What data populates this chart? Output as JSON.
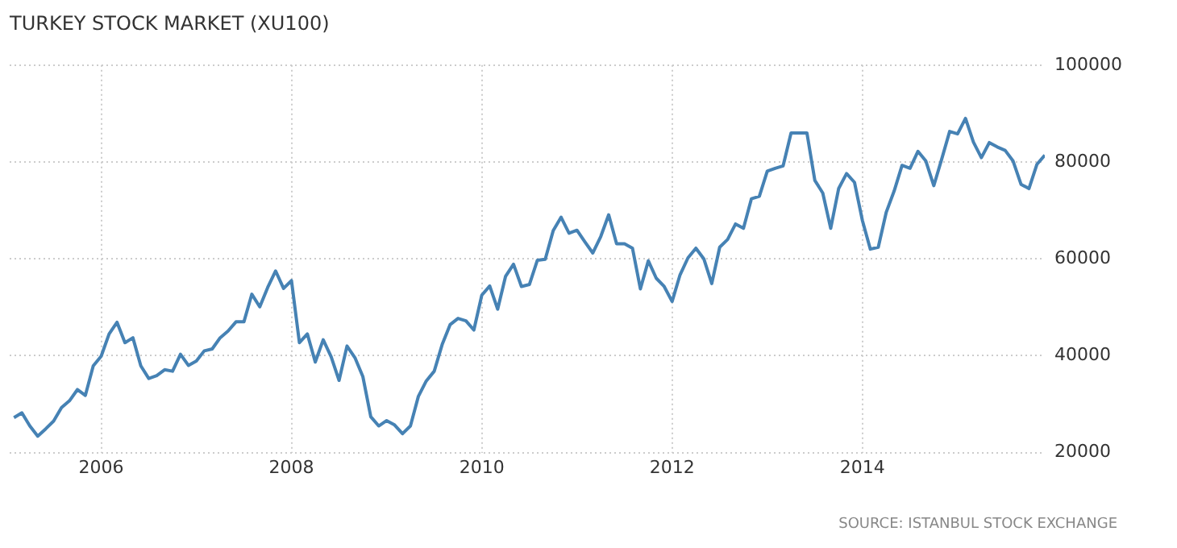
{
  "chart_data": {
    "type": "line",
    "title": "TURKEY STOCK MARKET (XU100)",
    "annotations": [
      "SOURCE: ISTANBUL STOCK EXCHANGE"
    ],
    "x": [
      "2005-02",
      "2005-03",
      "2005-04",
      "2005-05",
      "2005-06",
      "2005-07",
      "2005-08",
      "2005-09",
      "2005-10",
      "2005-11",
      "2005-12",
      "2006-01",
      "2006-02",
      "2006-03",
      "2006-04",
      "2006-05",
      "2006-06",
      "2006-07",
      "2006-08",
      "2006-09",
      "2006-10",
      "2006-11",
      "2006-12",
      "2007-01",
      "2007-02",
      "2007-03",
      "2007-04",
      "2007-05",
      "2007-06",
      "2007-07",
      "2007-08",
      "2007-09",
      "2007-10",
      "2007-11",
      "2007-12",
      "2008-01",
      "2008-02",
      "2008-03",
      "2008-04",
      "2008-05",
      "2008-06",
      "2008-07",
      "2008-08",
      "2008-09",
      "2008-10",
      "2008-11",
      "2008-12",
      "2009-01",
      "2009-02",
      "2009-03",
      "2009-04",
      "2009-05",
      "2009-06",
      "2009-07",
      "2009-08",
      "2009-09",
      "2009-10",
      "2009-11",
      "2009-12",
      "2010-01",
      "2010-02",
      "2010-03",
      "2010-04",
      "2010-05",
      "2010-06",
      "2010-07",
      "2010-08",
      "2010-09",
      "2010-10",
      "2010-11",
      "2010-12",
      "2011-01",
      "2011-02",
      "2011-03",
      "2011-04",
      "2011-05",
      "2011-06",
      "2011-07",
      "2011-08",
      "2011-09",
      "2011-10",
      "2011-11",
      "2011-12",
      "2012-01",
      "2012-02",
      "2012-03",
      "2012-04",
      "2012-05",
      "2012-06",
      "2012-07",
      "2012-08",
      "2012-09",
      "2012-10",
      "2012-11",
      "2012-12",
      "2013-01",
      "2013-02",
      "2013-03",
      "2013-04",
      "2013-05",
      "2013-06",
      "2013-07",
      "2013-08",
      "2013-09",
      "2013-10",
      "2013-11",
      "2013-12",
      "2014-01",
      "2014-02",
      "2014-03",
      "2014-04",
      "2014-05",
      "2014-06",
      "2014-07",
      "2014-08",
      "2014-09",
      "2014-10",
      "2014-11",
      "2014-12",
      "2015-01",
      "2015-02",
      "2015-03",
      "2015-04",
      "2015-05",
      "2015-06",
      "2015-07",
      "2015-08",
      "2015-09",
      "2015-10",
      "2015-11",
      "2015-12"
    ],
    "series": [
      {
        "color": "#4682b4",
        "values": [
          27200,
          28200,
          25500,
          23400,
          24900,
          26500,
          29300,
          30700,
          33000,
          31800,
          37900,
          39900,
          44500,
          46900,
          42700,
          43700,
          37900,
          35300,
          35900,
          37100,
          36800,
          40300,
          38000,
          38900,
          41000,
          41400,
          43700,
          45100,
          47000,
          47000,
          52700,
          50100,
          54100,
          57500,
          53900,
          55500,
          42700,
          44500,
          38700,
          43300,
          39800,
          34900,
          42000,
          39600,
          35700,
          27400,
          25500,
          26600,
          25700,
          23900,
          25500,
          31600,
          34800,
          36800,
          42300,
          46400,
          47700,
          47200,
          45300,
          52500,
          54400,
          49600,
          56400,
          58900,
          54300,
          54700,
          59700,
          59900,
          65800,
          68600,
          65300,
          65900,
          63500,
          61200,
          64600,
          69100,
          63100,
          63100,
          62200,
          53800,
          59600,
          56000,
          54300,
          51200,
          56700,
          60200,
          62200,
          60000,
          54900,
          62400,
          64000,
          67200,
          66300,
          72400,
          72900,
          78100,
          78700,
          79200,
          86000,
          86000,
          86000,
          76200,
          73600,
          66300,
          74500,
          77600,
          75800,
          67900,
          62000,
          62400,
          69600,
          74000,
          79300,
          78700,
          82200,
          80200,
          75100,
          80600,
          86300,
          85800,
          89000,
          84100,
          80900,
          84000,
          83100,
          82400,
          80200,
          75400,
          74500,
          79500,
          81400
        ]
      }
    ],
    "xlim": [
      "2005-01-15",
      "2015-12"
    ],
    "xticks": [
      "2006",
      "2008",
      "2010",
      "2012",
      "2014"
    ],
    "ylim": [
      20000,
      100000
    ],
    "yticks": [
      20000,
      40000,
      60000,
      80000,
      100000
    ],
    "grid": true,
    "marker": "none",
    "line_style": "solid"
  }
}
